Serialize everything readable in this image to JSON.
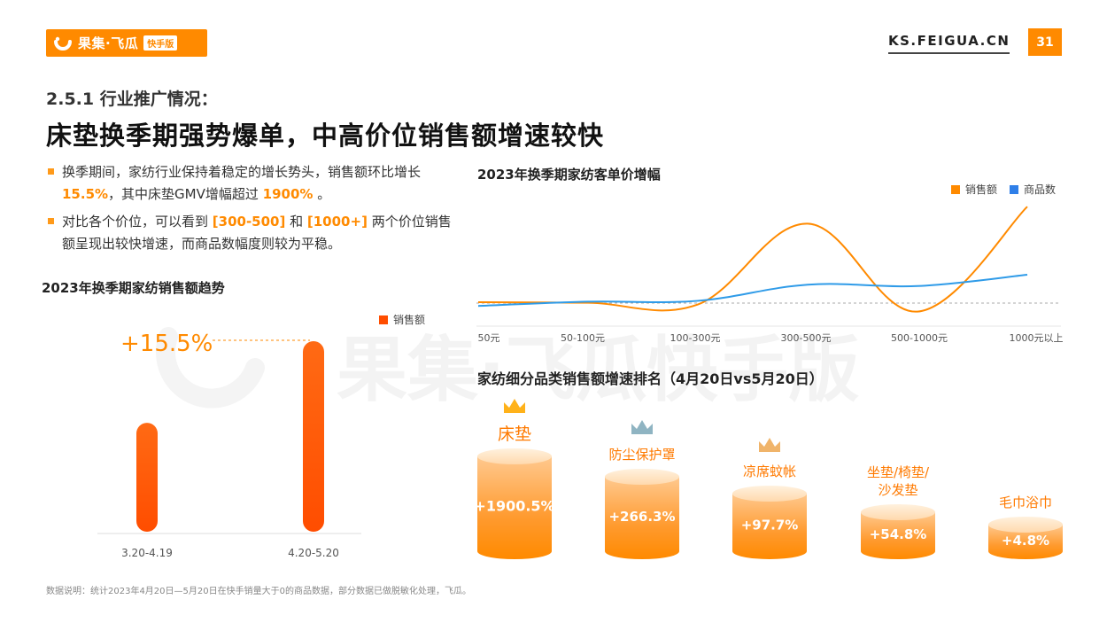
{
  "header": {
    "logo_text": "果集·飞瓜",
    "logo_badge": "快手版",
    "site": "KS.FEIGUA.CN",
    "page_number": "31"
  },
  "subtitle": "2.5.1 行业推广情况：",
  "title": "床垫换季期强势爆单，中高价位销售额增速较快",
  "bullets": {
    "b1_part1": "换季期间，家纺行业保持着稳定的增长势头，销售额环比增长 ",
    "b1_hl1": "15.5%",
    "b1_part2": "，其中床垫GMV增幅超过 ",
    "b1_hl2": "1900%",
    "b1_part3": " 。",
    "b2_part1": "对比各个价位，可以看到 ",
    "b2_hl1": "[300-500]",
    "b2_part2": " 和 ",
    "b2_hl2": "[1000+]",
    "b2_part3": " 两个价位销售额呈现出较快增速，而商品数幅度则较为平稳。"
  },
  "watermark": "果集·飞瓜快手版",
  "colors": {
    "accent": "#ff8a00",
    "blue": "#2f9be8",
    "bar_top": "#ff6a14",
    "bar_bottom": "#ff4d00"
  },
  "bar_chart": {
    "chart_data": {
      "type": "bar",
      "title": "2023年换季期家纺销售额趋势",
      "categories": [
        "3.20-4.19",
        "4.20-5.20"
      ],
      "series": [
        {
          "name": "销售额",
          "values": [
            1.0,
            1.155
          ]
        }
      ],
      "annotation": "+15.5%",
      "legend_position": "top-right",
      "grid": false
    }
  },
  "line_chart": {
    "chart_data": {
      "type": "line",
      "title": "2023年换季期家纺客单价增幅",
      "categories": [
        "50元",
        "50-100元",
        "100-300元",
        "300-500元",
        "500-1000元",
        "1000元以上"
      ],
      "series": [
        {
          "name": "销售额",
          "values": [
            0.3,
            0.1,
            -0.5,
            28,
            -3,
            34
          ]
        },
        {
          "name": "商品数",
          "values": [
            -1.0,
            0.5,
            0.8,
            6.5,
            6,
            10
          ]
        }
      ],
      "baseline": 0,
      "legend_position": "top-right",
      "grid": false
    }
  },
  "ranking": {
    "title": "家纺细分品类销售额增速排名（4月20日vs5月20日）",
    "chart_data": {
      "type": "bar",
      "categories": [
        "床垫",
        "防尘保护罩",
        "凉席蚊帐",
        "坐垫/椅垫/沙发垫",
        "毛巾浴巾"
      ],
      "values": [
        1900.5,
        266.3,
        97.7,
        54.8,
        4.8
      ]
    },
    "items": [
      {
        "label1": "床垫",
        "label2": "",
        "value": "+1900.5%"
      },
      {
        "label1": "防尘保护罩",
        "label2": "",
        "value": "+266.3%"
      },
      {
        "label1": "凉席蚊帐",
        "label2": "",
        "value": "+97.7%"
      },
      {
        "label1": "坐垫/椅垫/",
        "label2": "沙发垫",
        "value": "+54.8%"
      },
      {
        "label1": "毛巾浴巾",
        "label2": "",
        "value": "+4.8%"
      }
    ]
  },
  "footnote": "数据说明：统计2023年4月20日—5月20日在快手销量大于0的商品数据，部分数据已做脱敏化处理，飞瓜。"
}
